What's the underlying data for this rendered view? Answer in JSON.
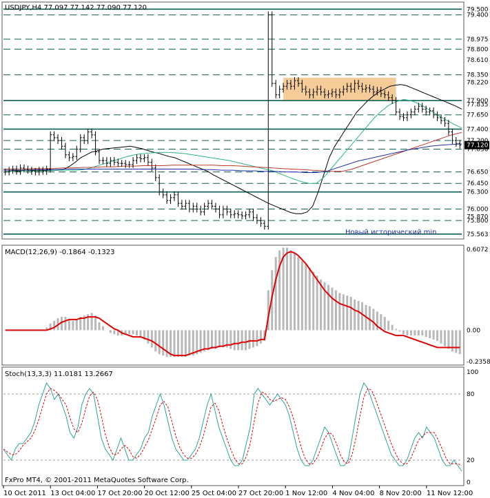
{
  "chart_data": [
    {
      "type": "candlestick",
      "header": "USDJPY,H4  77.097 77.142 77.090 77.120",
      "symbol": "USDJPY",
      "timeframe": "H4",
      "last_bar": {
        "open": 77.097,
        "high": 77.142,
        "low": 77.09,
        "close": 77.12
      },
      "ylim": [
        75.5,
        79.6
      ],
      "price_axis_labels": [
        "79.500",
        "79.400",
        "78.975",
        "78.800",
        "78.610",
        "78.350",
        "78.220",
        "77.900",
        "77.835",
        "77.650",
        "77.400",
        "77.200",
        "77.050",
        "76.650",
        "76.450",
        "76.300",
        "76.000",
        "75.870",
        "75.800",
        "75.563"
      ],
      "levels": [
        79.5,
        79.4,
        78.975,
        78.8,
        78.35,
        77.9,
        77.65,
        77.4,
        77.2,
        77.05,
        76.65,
        76.45,
        76.3,
        76.0,
        75.8,
        75.563
      ],
      "current_price": 77.12,
      "annotation": "Новый исторический min",
      "highlight_zone": {
        "from_bar": 74,
        "to_bar": 104,
        "low": 77.9,
        "high": 78.3
      },
      "close": [
        76.65,
        76.68,
        76.7,
        76.66,
        76.72,
        76.7,
        76.68,
        76.66,
        76.65,
        76.68,
        76.66,
        76.7,
        77.3,
        77.25,
        77.2,
        77.1,
        76.95,
        76.9,
        76.92,
        77.05,
        77.25,
        77.2,
        77.35,
        77.3,
        77.0,
        76.85,
        76.85,
        76.8,
        76.85,
        76.82,
        76.8,
        76.8,
        76.78,
        76.78,
        76.85,
        76.9,
        76.88,
        76.9,
        76.82,
        76.72,
        76.55,
        76.3,
        76.25,
        76.15,
        76.2,
        76.25,
        76.1,
        76.05,
        76.1,
        76.0,
        76.05,
        76.0,
        75.95,
        76.05,
        76.1,
        76.05,
        76.0,
        75.9,
        76.0,
        75.95,
        75.9,
        75.92,
        75.9,
        75.88,
        75.9,
        75.95,
        75.85,
        75.8,
        75.75,
        75.7,
        79.4,
        78.2,
        78.0,
        78.1,
        78.15,
        78.2,
        78.15,
        78.25,
        78.2,
        78.1,
        78.05,
        78.0,
        78.05,
        78.1,
        78.05,
        78.0,
        78.02,
        78.05,
        78.0,
        78.05,
        78.1,
        78.15,
        78.1,
        78.2,
        78.15,
        78.1,
        78.12,
        78.1,
        78.05,
        78.08,
        78.02,
        78.0,
        77.95,
        77.9,
        77.7,
        77.62,
        77.6,
        77.65,
        77.7,
        77.75,
        77.8,
        77.75,
        77.7,
        77.72,
        77.65,
        77.6,
        77.55,
        77.5,
        77.35,
        77.2,
        77.15,
        77.12
      ],
      "moving_averages": [
        {
          "color": "#000000",
          "values": [
            76.65,
            76.66,
            76.67,
            76.67,
            76.67,
            76.68,
            76.68,
            76.68,
            76.68,
            76.68,
            76.68,
            76.7,
            76.75,
            76.82,
            76.9,
            76.95,
            77.0,
            77.02,
            77.05,
            77.06,
            77.07,
            77.08,
            77.09,
            77.1,
            77.08,
            77.06,
            77.03,
            77.0,
            76.98,
            76.95,
            76.92,
            76.9,
            76.86,
            76.82,
            76.78,
            76.74,
            76.7,
            76.66,
            76.6,
            76.55,
            76.5,
            76.45,
            76.4,
            76.35,
            76.3,
            76.25,
            76.2,
            76.15,
            76.1,
            76.06,
            76.02,
            75.98,
            75.94,
            75.92,
            75.92,
            75.95,
            76.05,
            76.3,
            76.6,
            76.9,
            77.1,
            77.25,
            77.4,
            77.55,
            77.7,
            77.8,
            77.9,
            77.98,
            78.05,
            78.1,
            78.15,
            78.17,
            78.18,
            78.16,
            78.12,
            78.08,
            78.04,
            78.0,
            77.96,
            77.92,
            77.88,
            77.84,
            77.8,
            77.75
          ]
        },
        {
          "color": "#2db38a",
          "values": [
            76.65,
            76.66,
            76.66,
            76.67,
            76.67,
            76.67,
            76.67,
            76.68,
            76.68,
            76.68,
            76.68,
            76.69,
            76.72,
            76.76,
            76.8,
            76.84,
            76.88,
            76.92,
            76.95,
            76.97,
            76.98,
            76.99,
            76.99,
            76.99,
            76.98,
            76.97,
            76.95,
            76.93,
            76.91,
            76.89,
            76.87,
            76.85,
            76.82,
            76.79,
            76.76,
            76.73,
            76.7,
            76.67,
            76.62,
            76.57,
            76.52,
            76.48,
            76.45,
            76.45,
            76.55,
            76.7,
            76.85,
            77.0,
            77.15,
            77.3,
            77.45,
            77.6,
            77.72,
            77.82,
            77.88,
            77.92,
            77.9,
            77.85,
            77.78,
            77.7,
            77.62,
            77.55,
            77.48,
            77.42
          ]
        },
        {
          "color": "#c0392b",
          "values": [
            76.7,
            76.7,
            76.7,
            76.71,
            76.71,
            76.71,
            76.72,
            76.72,
            76.73,
            76.73,
            76.74,
            76.74,
            76.75,
            76.75,
            76.76,
            76.76,
            76.76,
            76.77,
            76.77,
            76.77,
            76.77,
            76.77,
            76.76,
            76.76,
            76.75,
            76.74,
            76.73,
            76.72,
            76.71,
            76.7,
            76.69,
            76.68,
            76.67,
            76.66,
            76.66,
            76.7,
            76.76,
            76.82,
            76.88,
            76.94,
            77.0,
            77.06,
            77.12,
            77.18,
            77.24,
            77.3,
            77.34
          ]
        },
        {
          "color": "#1f2fa8",
          "values": [
            76.68,
            76.68,
            76.68,
            76.69,
            76.69,
            76.69,
            76.7,
            76.7,
            76.7,
            76.7,
            76.7,
            76.7,
            76.7,
            76.7,
            76.7,
            76.7,
            76.7,
            76.7,
            76.7,
            76.69,
            76.69,
            76.68,
            76.68,
            76.67,
            76.67,
            76.66,
            76.66,
            76.65,
            76.65,
            76.64,
            76.64,
            76.66,
            76.72,
            76.78,
            76.84,
            76.88,
            76.92,
            76.96,
            77.0,
            77.04,
            77.07,
            77.1,
            77.12,
            77.13,
            77.14
          ]
        }
      ]
    },
    {
      "type": "bar",
      "header": "MACD(12,26,9) -0.1864 -0.1323",
      "indicator": "MACD(12,26,9)",
      "values_shown": [
        -0.1864,
        -0.1323
      ],
      "ylim": [
        -0.2358,
        0.6072
      ],
      "axis_labels": [
        "0.6072",
        "0.00",
        "-0.2358"
      ],
      "histogram": [
        0,
        0,
        0,
        0,
        0,
        0,
        0,
        0,
        0,
        0,
        0,
        0.02,
        0.05,
        0.07,
        0.09,
        0.1,
        0.1,
        0.08,
        0.07,
        0.08,
        0.1,
        0.11,
        0.12,
        0.13,
        0.11,
        0.06,
        0.03,
        0.0,
        -0.02,
        -0.03,
        -0.04,
        -0.04,
        -0.03,
        -0.03,
        -0.03,
        -0.04,
        -0.05,
        -0.07,
        -0.1,
        -0.13,
        -0.16,
        -0.18,
        -0.19,
        -0.2,
        -0.2,
        -0.2,
        -0.2,
        -0.2,
        -0.2,
        -0.19,
        -0.19,
        -0.18,
        -0.17,
        -0.16,
        -0.15,
        -0.14,
        -0.14,
        -0.13,
        -0.13,
        -0.13,
        -0.14,
        -0.15,
        -0.15,
        -0.15,
        -0.15,
        -0.14,
        -0.13,
        -0.12,
        -0.1,
        -0.08,
        0.3,
        0.45,
        0.55,
        0.6,
        0.62,
        0.62,
        0.6,
        0.58,
        0.55,
        0.52,
        0.5,
        0.47,
        0.44,
        0.41,
        0.38,
        0.36,
        0.34,
        0.32,
        0.3,
        0.28,
        0.27,
        0.26,
        0.25,
        0.23,
        0.22,
        0.21,
        0.19,
        0.18,
        0.16,
        0.14,
        0.12,
        0.1,
        0.07,
        0.04,
        0.01,
        -0.01,
        -0.03,
        -0.04,
        -0.04,
        -0.04,
        -0.04,
        -0.04,
        -0.05,
        -0.06,
        -0.07,
        -0.08,
        -0.1,
        -0.12,
        -0.14,
        -0.16,
        -0.17,
        -0.18
      ],
      "signal": [
        0,
        0,
        0,
        0,
        0,
        0,
        0,
        0,
        0,
        0,
        0,
        0,
        0.01,
        0.02,
        0.04,
        0.06,
        0.07,
        0.08,
        0.08,
        0.08,
        0.09,
        0.09,
        0.1,
        0.1,
        0.1,
        0.09,
        0.07,
        0.05,
        0.03,
        0.01,
        0.0,
        -0.02,
        -0.03,
        -0.04,
        -0.05,
        -0.05,
        -0.05,
        -0.06,
        -0.07,
        -0.08,
        -0.1,
        -0.12,
        -0.14,
        -0.16,
        -0.18,
        -0.19,
        -0.19,
        -0.19,
        -0.19,
        -0.18,
        -0.17,
        -0.16,
        -0.15,
        -0.14,
        -0.14,
        -0.13,
        -0.13,
        -0.12,
        -0.12,
        -0.11,
        -0.11,
        -0.1,
        -0.1,
        -0.09,
        -0.09,
        -0.08,
        -0.08,
        -0.08,
        -0.07,
        -0.07,
        0.1,
        0.25,
        0.38,
        0.48,
        0.55,
        0.58,
        0.59,
        0.58,
        0.56,
        0.53,
        0.5,
        0.46,
        0.42,
        0.38,
        0.34,
        0.3,
        0.27,
        0.24,
        0.22,
        0.2,
        0.19,
        0.18,
        0.17,
        0.15,
        0.14,
        0.12,
        0.1,
        0.08,
        0.06,
        0.03,
        0.01,
        -0.01,
        -0.02,
        -0.03,
        -0.04,
        -0.04,
        -0.04,
        -0.05,
        -0.06,
        -0.07,
        -0.08,
        -0.09,
        -0.1,
        -0.11,
        -0.12,
        -0.13,
        -0.13,
        -0.13,
        -0.13,
        -0.13,
        -0.13,
        -0.13
      ]
    },
    {
      "type": "line",
      "header": "Stoch(13,3,3) 11.0181 13.2667",
      "indicator": "Stoch(13,3,3)",
      "values_shown": [
        11.0181,
        13.2667
      ],
      "ylim": [
        0,
        100
      ],
      "axis_labels": [
        "100",
        "80",
        "20",
        "0"
      ],
      "main": [
        30,
        25,
        20,
        30,
        35,
        35,
        40,
        45,
        55,
        70,
        80,
        90,
        85,
        75,
        80,
        70,
        60,
        45,
        40,
        50,
        70,
        80,
        85,
        80,
        60,
        40,
        30,
        25,
        20,
        30,
        40,
        30,
        20,
        20,
        25,
        30,
        40,
        45,
        60,
        70,
        80,
        70,
        55,
        40,
        30,
        25,
        20,
        20,
        25,
        30,
        40,
        55,
        70,
        80,
        65,
        50,
        40,
        30,
        20,
        15,
        15,
        20,
        35,
        50,
        80,
        85,
        80,
        75,
        70,
        75,
        80,
        75,
        70,
        60,
        45,
        30,
        20,
        15,
        15,
        20,
        30,
        40,
        50,
        45,
        35,
        25,
        15,
        15,
        20,
        40,
        60,
        80,
        90,
        85,
        75,
        65,
        55,
        45,
        35,
        25,
        20,
        15,
        15,
        20,
        30,
        40,
        45,
        40,
        50,
        45,
        40,
        30,
        20,
        15,
        15,
        20,
        15,
        10
      ]
    }
  ],
  "footer": "FxPro MT4, © 2001-2011 MetaQuotes Software Corp.",
  "x_tick_labels": [
    "10 Oct 2011",
    "13 Oct 04:00",
    "17 Oct 20:00",
    "20 Oct 12:00",
    "25 Oct 04:00",
    "27 Oct 20:00",
    "1 Nov 12:00",
    "4 Nov 04:00",
    "8 Nov 20:00",
    "11 Nov 12:00"
  ],
  "colors": {
    "bull_bear": "#000000",
    "level_line": "#0b5e55",
    "zone": "#f5cc97",
    "annotation": "#1f2fa8",
    "macd_hist": "#b8b8b8",
    "macd_signal": "#e00000",
    "stoch_main": "#2aa39a",
    "stoch_signal": "#e00000",
    "current_price_box": "#000000"
  }
}
